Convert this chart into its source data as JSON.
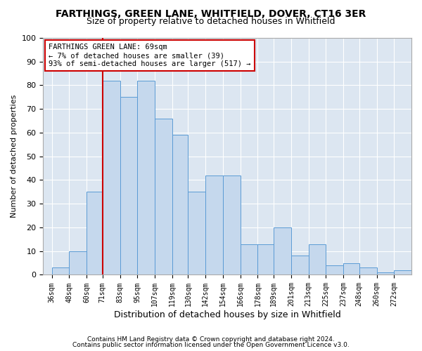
{
  "title1": "FARTHINGS, GREEN LANE, WHITFIELD, DOVER, CT16 3ER",
  "title2": "Size of property relative to detached houses in Whitfield",
  "xlabel": "Distribution of detached houses by size in Whitfield",
  "ylabel": "Number of detached properties",
  "footer1": "Contains HM Land Registry data © Crown copyright and database right 2024.",
  "footer2": "Contains public sector information licensed under the Open Government Licence v3.0.",
  "annotation_line1": "FARTHINGS GREEN LANE: 69sqm",
  "annotation_line2": "← 7% of detached houses are smaller (39)",
  "annotation_line3": "93% of semi-detached houses are larger (517) →",
  "bar_lefts": [
    36,
    48,
    60,
    71,
    83,
    95,
    107,
    119,
    130,
    142,
    154,
    166,
    178,
    189,
    201,
    213,
    225,
    237,
    248,
    260,
    272
  ],
  "bar_widths": [
    12,
    12,
    11,
    12,
    12,
    12,
    12,
    11,
    12,
    12,
    12,
    12,
    11,
    12,
    12,
    12,
    12,
    11,
    12,
    12,
    12
  ],
  "bar_heights": [
    3,
    10,
    35,
    82,
    75,
    82,
    66,
    59,
    35,
    42,
    42,
    13,
    13,
    20,
    8,
    13,
    4,
    5,
    3,
    1,
    2
  ],
  "tick_positions": [
    36,
    48,
    60,
    71,
    83,
    95,
    107,
    119,
    130,
    142,
    154,
    166,
    178,
    189,
    201,
    213,
    225,
    237,
    248,
    260,
    272
  ],
  "tick_labels": [
    "36sqm",
    "48sqm",
    "60sqm",
    "71sqm",
    "83sqm",
    "95sqm",
    "107sqm",
    "119sqm",
    "130sqm",
    "142sqm",
    "154sqm",
    "166sqm",
    "178sqm",
    "189sqm",
    "201sqm",
    "213sqm",
    "225sqm",
    "237sqm",
    "248sqm",
    "260sqm",
    "272sqm"
  ],
  "bar_color": "#c5d8ed",
  "bar_edge_color": "#5b9bd5",
  "vline_color": "#cc0000",
  "vline_x": 71,
  "annotation_box_edgecolor": "#cc0000",
  "plot_bg_color": "#dce6f1",
  "fig_bg_color": "#ffffff",
  "grid_color": "#ffffff",
  "ylim": [
    0,
    100
  ],
  "xlim": [
    30,
    284
  ],
  "title1_fontsize": 10,
  "title2_fontsize": 9,
  "ylabel_fontsize": 8,
  "xlabel_fontsize": 9,
  "tick_fontsize": 7,
  "ytick_fontsize": 8,
  "annotation_fontsize": 7.5,
  "footer_fontsize": 6.5
}
